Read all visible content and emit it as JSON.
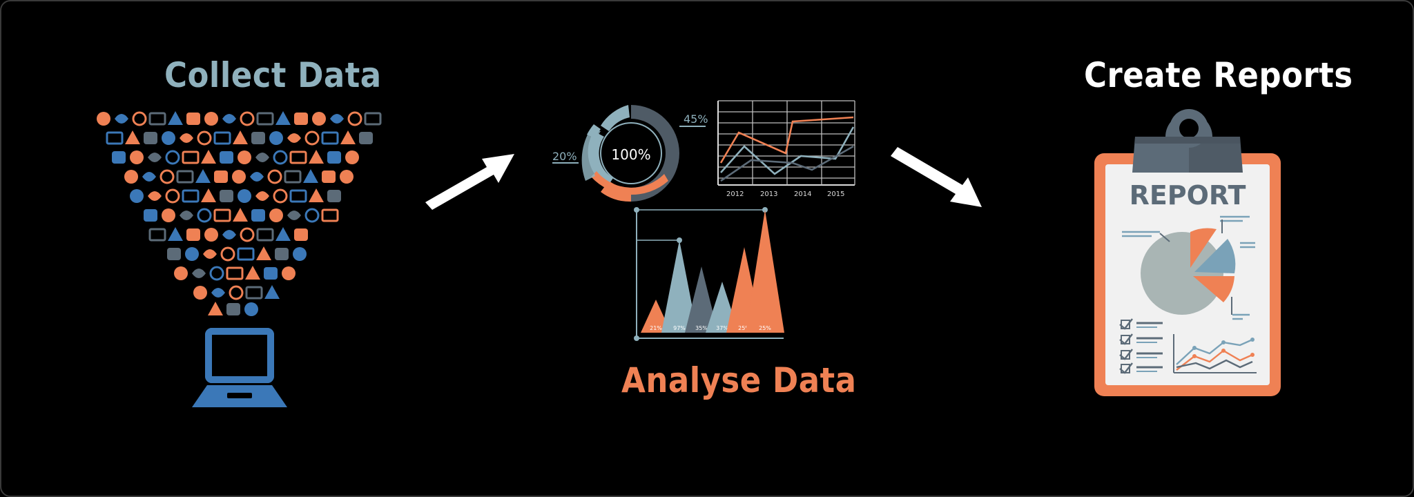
{
  "steps": {
    "collect": {
      "title": "Collect Data"
    },
    "analyse": {
      "title": "Analyse Data",
      "donut": {
        "center": "100%",
        "left": "20%",
        "right": "45%"
      },
      "line_chart": {
        "years": [
          "2012",
          "2013",
          "2014",
          "2015"
        ]
      },
      "peaks": [
        "21%",
        "97%",
        "35%",
        "37%",
        "25%",
        "25%"
      ]
    },
    "report": {
      "title": "Create Reports",
      "clipboard_label": "REPORT"
    }
  },
  "colors": {
    "blue": "#3b78b8",
    "orange": "#ef8154",
    "teal": "#8fb1bd",
    "slate": "#5c6b78"
  }
}
